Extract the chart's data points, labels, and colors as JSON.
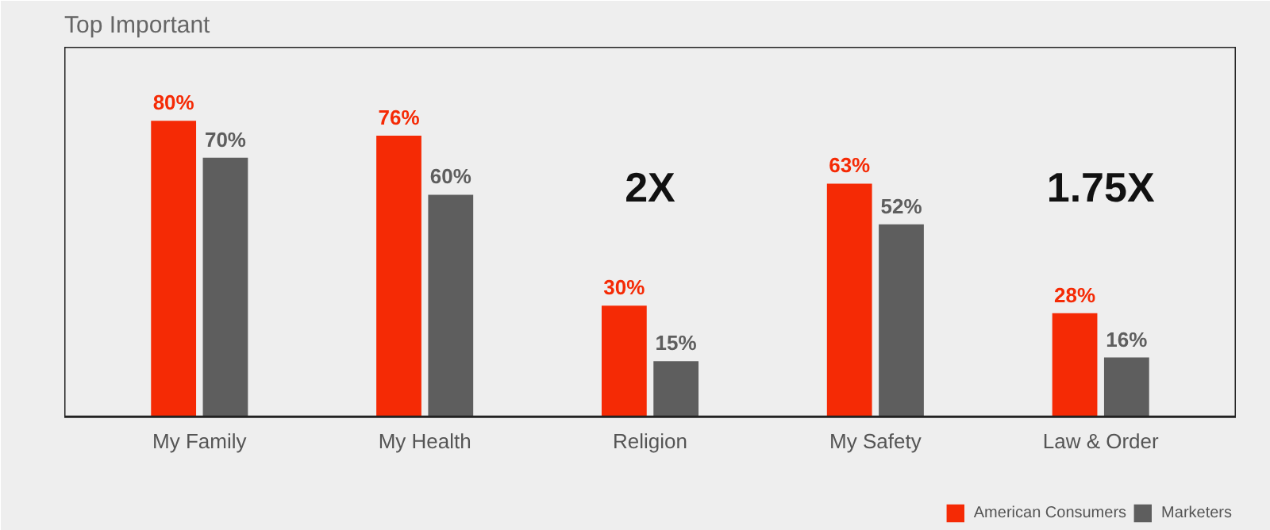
{
  "chart_data": {
    "type": "bar",
    "title": "Top Important",
    "categories": [
      "My Family",
      "My Health",
      "Religion",
      "My Safety",
      "Law & Order"
    ],
    "series": [
      {
        "name": "American Consumers",
        "color": "#f52a05",
        "values": [
          80,
          76,
          30,
          63,
          28
        ],
        "value_labels": [
          "80%",
          "76%",
          "30%",
          "63%",
          "28%"
        ]
      },
      {
        "name": "Marketers",
        "color": "#5e5e5e",
        "values": [
          70,
          60,
          15,
          52,
          16
        ],
        "value_labels": [
          "70%",
          "60%",
          "15%",
          "52%",
          "16%"
        ]
      }
    ],
    "annotations": [
      "2X",
      "1.75X"
    ],
    "legend": "bottom right",
    "tick_labels": "x"
  }
}
